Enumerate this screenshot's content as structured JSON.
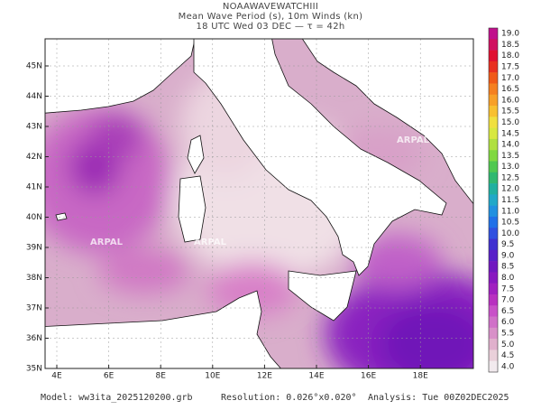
{
  "header": {
    "model_name": "NOAAWAVEWATCHIII",
    "title": "Mean Wave Period (s), 10m Winds (kn)",
    "subtitle": "18 UTC Wed 03 DEC  —  τ = 42h"
  },
  "map": {
    "watermark": "ARPAL",
    "lat_labels": [
      "45N",
      "44N",
      "43N",
      "42N",
      "41N",
      "40N",
      "39N",
      "38N",
      "37N",
      "36N",
      "35N"
    ],
    "lon_labels": [
      "4E",
      "6E",
      "8E",
      "10E",
      "12E",
      "14E",
      "16E",
      "18E"
    ]
  },
  "colorbar": {
    "labels": [
      "19.0",
      "18.5",
      "18.0",
      "17.5",
      "17.0",
      "16.5",
      "16.0",
      "15.5",
      "15.0",
      "14.5",
      "14.0",
      "13.5",
      "13.0",
      "12.5",
      "12.0",
      "11.5",
      "11.0",
      "10.5",
      "10.0",
      "9.5",
      "9.0",
      "8.5",
      "8.0",
      "7.5",
      "7.0",
      "6.5",
      "6.0",
      "5.5",
      "5.0",
      "4.5",
      "4.0"
    ],
    "colors": [
      "#c0108c",
      "#d01060",
      "#e01030",
      "#e83020",
      "#f05a18",
      "#f58020",
      "#f8a028",
      "#f8c030",
      "#f0e040",
      "#d8e840",
      "#b0e040",
      "#80d840",
      "#50c850",
      "#30b870",
      "#20b0a0",
      "#20a8c8",
      "#2090e0",
      "#2070e8",
      "#3050e0",
      "#4030d0",
      "#5820c8",
      "#7018c0",
      "#8818c0",
      "#a020c0",
      "#b830c0",
      "#c850c8",
      "#d070c8",
      "#d890c8",
      "#e0b0cc",
      "#ead0da",
      "#f2eaee"
    ]
  },
  "footer": {
    "model": "Model: ww3ita_2025120200.grb",
    "resolution": "Resolution: 0.026°x0.020°",
    "analysis": "Analysis: Tue 00Z02DEC2025"
  }
}
